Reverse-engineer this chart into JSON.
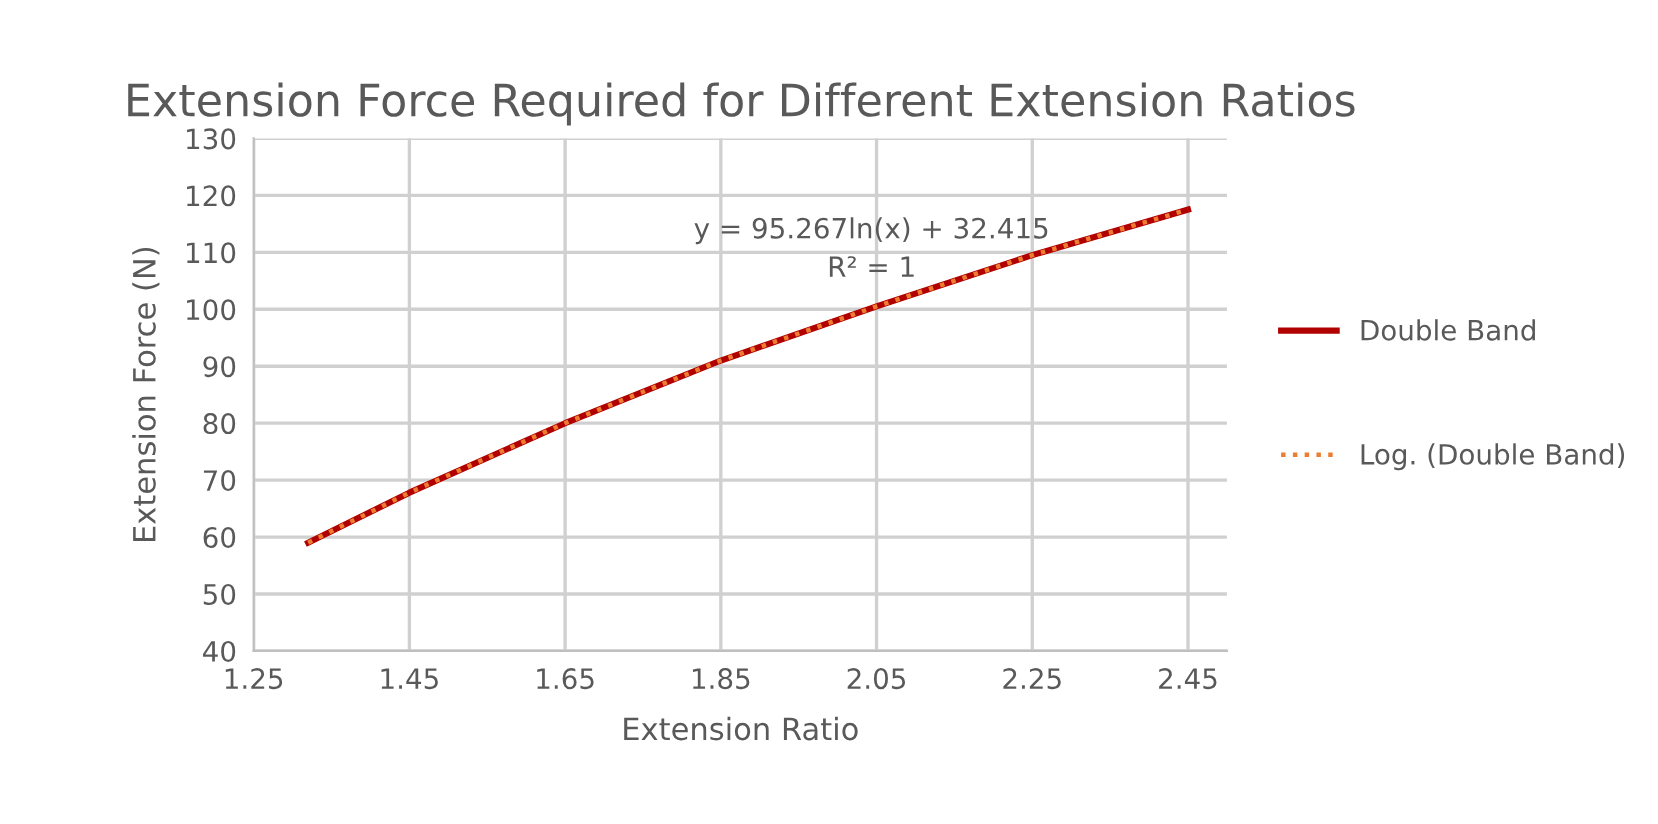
{
  "chart_data": {
    "type": "line",
    "title": "Extension Force Required for Different Extension Ratios",
    "xlabel": "Extension Ratio",
    "ylabel": "Extension Force (N)",
    "series": [
      {
        "name": "Double Band",
        "color": "#b00000",
        "x": [
          1.32,
          1.45,
          1.65,
          1.85,
          2.05,
          2.25,
          2.45
        ],
        "values": [
          59,
          67.8,
          80,
          91,
          100.5,
          109.5,
          117.5
        ],
        "line_style": "solid"
      },
      {
        "name": "Log. (Double Band)",
        "color": "#ed7d31",
        "x": [
          1.32,
          1.45,
          1.65,
          1.85,
          2.05,
          2.25,
          2.45
        ],
        "values": [
          59,
          67.8,
          80,
          91,
          100.5,
          109.5,
          117.5
        ],
        "line_style": "dotted"
      }
    ],
    "annotations": [
      "y = 95.267ln(x) + 32.415",
      "R² = 1"
    ],
    "xlim": [
      1.25,
      2.5
    ],
    "xticks": [
      1.25,
      1.45,
      1.65,
      1.85,
      2.05,
      2.25,
      2.45
    ],
    "ylim": [
      40,
      130
    ],
    "yticks": [
      40,
      50,
      60,
      70,
      80,
      90,
      100,
      110,
      120,
      130
    ],
    "grid": true,
    "legend": "right",
    "marker": "none"
  }
}
